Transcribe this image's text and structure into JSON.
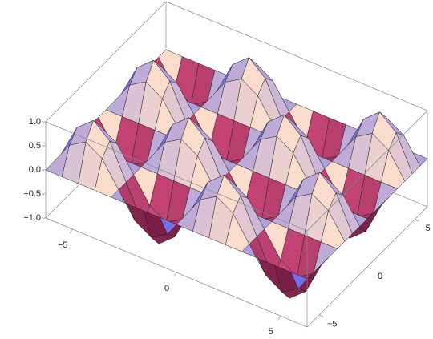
{
  "chart_data": {
    "type": "surface",
    "x": [
      -6.28,
      -5.5,
      -4.71,
      -3.93,
      -3.14,
      -2.36,
      -1.57,
      -0.79,
      0,
      0.79,
      1.57,
      2.36,
      3.14,
      3.93,
      4.71,
      5.5,
      6.28
    ],
    "y": [
      -6.28,
      -5.5,
      -4.71,
      -3.93,
      -3.14,
      -2.36,
      -1.57,
      -0.79,
      0,
      0.79,
      1.57,
      2.36,
      3.14,
      3.93,
      4.71,
      5.5,
      6.28
    ],
    "z": [
      [
        0,
        0,
        0,
        0,
        0,
        0,
        0,
        0,
        0,
        0,
        0,
        0,
        0,
        0,
        0,
        0,
        0
      ],
      [
        0,
        0.5,
        0.71,
        0.5,
        0,
        -0.5,
        -0.71,
        -0.5,
        0,
        0.5,
        0.71,
        0.5,
        0,
        -0.5,
        -0.71,
        -0.5,
        0
      ],
      [
        0,
        0.71,
        1,
        0.71,
        0,
        -0.71,
        -1,
        -0.71,
        0,
        0.71,
        1,
        0.71,
        0,
        -0.71,
        -1,
        -0.71,
        0
      ],
      [
        0,
        0.5,
        0.71,
        0.5,
        0,
        -0.5,
        -0.71,
        -0.5,
        0,
        0.5,
        0.71,
        0.5,
        0,
        -0.5,
        -0.71,
        -0.5,
        0
      ],
      [
        0,
        0,
        0,
        0,
        0,
        0,
        0,
        0,
        0,
        0,
        0,
        0,
        0,
        0,
        0,
        0,
        0
      ],
      [
        0,
        -0.5,
        -0.71,
        -0.5,
        0,
        0.5,
        0.71,
        0.5,
        0,
        -0.5,
        -0.71,
        -0.5,
        0,
        0.5,
        0.71,
        0.5,
        0
      ],
      [
        0,
        -0.71,
        -1,
        -0.71,
        0,
        0.71,
        1,
        0.71,
        0,
        -0.71,
        -1,
        -0.71,
        0,
        0.71,
        1,
        0.71,
        0
      ],
      [
        0,
        -0.5,
        -0.71,
        -0.5,
        0,
        0.5,
        0.71,
        0.5,
        0,
        -0.5,
        -0.71,
        -0.5,
        0,
        0.5,
        0.71,
        0.5,
        0
      ],
      [
        0,
        0,
        0,
        0,
        0,
        0,
        0,
        0,
        0,
        0,
        0,
        0,
        0,
        0,
        0,
        0,
        0
      ],
      [
        0,
        0.5,
        0.71,
        0.5,
        0,
        -0.5,
        -0.71,
        -0.5,
        0,
        0.5,
        0.71,
        0.5,
        0,
        -0.5,
        -0.71,
        -0.5,
        0
      ],
      [
        0,
        0.71,
        1,
        0.71,
        0,
        -0.71,
        -1,
        -0.71,
        0,
        0.71,
        1,
        0.71,
        0,
        -0.71,
        -1,
        -0.71,
        0
      ],
      [
        0,
        0.5,
        0.71,
        0.5,
        0,
        -0.5,
        -0.71,
        -0.5,
        0,
        0.5,
        0.71,
        0.5,
        0,
        -0.5,
        -0.71,
        -0.5,
        0
      ],
      [
        0,
        0,
        0,
        0,
        0,
        0,
        0,
        0,
        0,
        0,
        0,
        0,
        0,
        0,
        0,
        0,
        0
      ],
      [
        0,
        -0.5,
        -0.71,
        -0.5,
        0,
        0.5,
        0.71,
        0.5,
        0,
        -0.5,
        -0.71,
        -0.5,
        0,
        0.5,
        0.71,
        0.5,
        0
      ],
      [
        0,
        -0.71,
        -1,
        -0.71,
        0,
        0.71,
        1,
        0.71,
        0,
        -0.71,
        -1,
        -0.71,
        0,
        0.71,
        1,
        0.71,
        0
      ],
      [
        0,
        -0.5,
        -0.71,
        -0.5,
        0,
        0.5,
        0.71,
        0.5,
        0,
        -0.5,
        -0.71,
        -0.5,
        0,
        0.5,
        0.71,
        0.5,
        0
      ],
      [
        0,
        0,
        0,
        0,
        0,
        0,
        0,
        0,
        0,
        0,
        0,
        0,
        0,
        0,
        0,
        0,
        0
      ]
    ],
    "xlim": [
      -6.28,
      6.28
    ],
    "ylim": [
      -6.28,
      6.28
    ],
    "zlim": [
      -1,
      1
    ],
    "xticks": [
      {
        "value": -5,
        "label": "−5"
      },
      0,
      5
    ],
    "yticks": [
      {
        "value": -5,
        "label": "−5"
      },
      0,
      5
    ],
    "zticks": [
      {
        "value": -1,
        "label": "−1.0"
      },
      {
        "value": -0.5,
        "label": "−0.5"
      },
      {
        "value": 0,
        "label": "0.0"
      },
      {
        "value": 0.5,
        "label": "0.5"
      },
      {
        "value": 1,
        "label": "1.0"
      }
    ]
  }
}
